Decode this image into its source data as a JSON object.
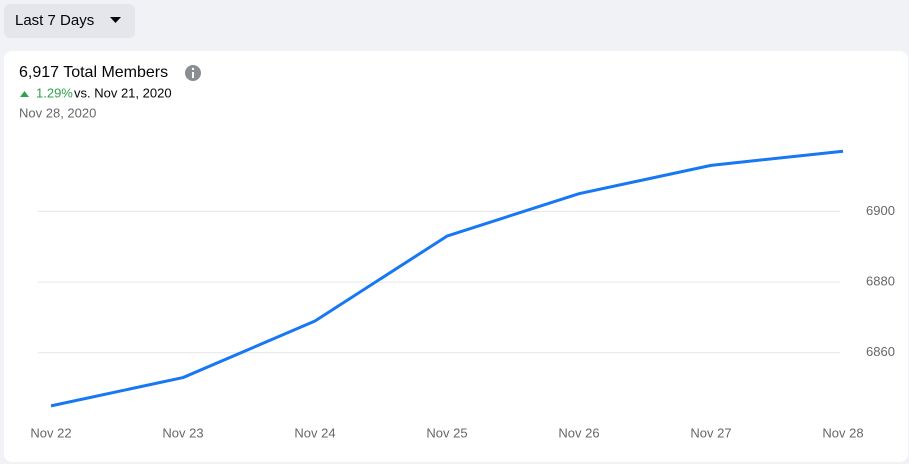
{
  "filter": "Last 7 Days",
  "chart_data": {
    "type": "line",
    "title": "6,917 Total Members",
    "change": "1.29%",
    "comparison": "vs. Nov 21, 2020",
    "date": "Nov 28, 2020",
    "categories": [
      "Nov 22",
      "Nov 23",
      "Nov 24",
      "Nov 25",
      "Nov 26",
      "Nov 27",
      "Nov 28"
    ],
    "values": [
      6845,
      6853,
      6869,
      6893,
      6905,
      6913,
      6917
    ],
    "color": "#1877f2",
    "ylim": [
      6841,
      6923
    ],
    "yticks": [
      6860,
      6880,
      6900
    ],
    "grid": true
  }
}
